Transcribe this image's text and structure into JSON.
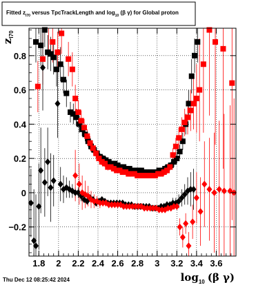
{
  "chart_data": {
    "type": "scatter",
    "title_parts": {
      "a": "Fitted  z",
      "a_sub": "I70",
      "b": "  versus TpcTrackLength and log",
      "b_sub": "10",
      "c": " (β  γ) for Global proton"
    },
    "xlabel": {
      "main": "log",
      "sub": "10",
      "tail": "(β γ)"
    },
    "ylabel": {
      "main": "z",
      "sub": "I70"
    },
    "xlim": [
      1.7,
      3.8
    ],
    "ylim": [
      -0.37,
      0.96
    ],
    "xticks": [
      1.8,
      2,
      2.2,
      2.4,
      2.6,
      2.8,
      3,
      3.2,
      3.4,
      3.6
    ],
    "xtick_labels": [
      "1.8",
      "2",
      "2.2",
      "2.4",
      "2.6",
      "2.8",
      "3",
      "3.2",
      "3.4",
      "3.6"
    ],
    "yticks": [
      -0.2,
      0,
      0.2,
      0.4,
      0.6,
      0.8
    ],
    "ytick_labels": [
      "−0.2",
      "0",
      "0.2",
      "0.4",
      "0.6",
      "0.8"
    ],
    "grid": true,
    "timestamp": "Thu Dec 12 08:25:42 2024",
    "series": [
      {
        "marker": "square",
        "color": "#000000",
        "points": [
          [
            1.77,
            0.88
          ],
          [
            1.82,
            0.86
          ],
          [
            1.86,
            0.95
          ],
          [
            1.89,
            0.82
          ],
          [
            1.92,
            0.81
          ],
          [
            1.95,
            0.79
          ],
          [
            1.98,
            0.72
          ],
          [
            2.02,
            0.75
          ],
          [
            2.05,
            0.66
          ],
          [
            2.08,
            0.58
          ],
          [
            2.12,
            0.47
          ],
          [
            2.15,
            0.46
          ],
          [
            2.18,
            0.44
          ],
          [
            2.21,
            0.4
          ],
          [
            2.24,
            0.37
          ],
          [
            2.27,
            0.34
          ],
          [
            2.3,
            0.3
          ],
          [
            2.33,
            0.27
          ],
          [
            2.36,
            0.25
          ],
          [
            2.39,
            0.23
          ],
          [
            2.42,
            0.21
          ],
          [
            2.45,
            0.2
          ],
          [
            2.48,
            0.19
          ],
          [
            2.51,
            0.18
          ],
          [
            2.54,
            0.17
          ],
          [
            2.57,
            0.17
          ],
          [
            2.6,
            0.16
          ],
          [
            2.63,
            0.15
          ],
          [
            2.66,
            0.15
          ],
          [
            2.69,
            0.14
          ],
          [
            2.72,
            0.14
          ],
          [
            2.75,
            0.13
          ],
          [
            2.78,
            0.13
          ],
          [
            2.81,
            0.13
          ],
          [
            2.84,
            0.13
          ],
          [
            2.87,
            0.12
          ],
          [
            2.9,
            0.12
          ],
          [
            2.93,
            0.12
          ],
          [
            2.96,
            0.12
          ],
          [
            2.99,
            0.12
          ],
          [
            3.02,
            0.13
          ],
          [
            3.05,
            0.13
          ],
          [
            3.08,
            0.14
          ],
          [
            3.11,
            0.15
          ],
          [
            3.14,
            0.16
          ],
          [
            3.17,
            0.18
          ],
          [
            3.2,
            0.2
          ],
          [
            3.23,
            0.24
          ],
          [
            3.26,
            0.3
          ],
          [
            3.29,
            0.4
          ],
          [
            3.32,
            0.52
          ],
          [
            3.35,
            0.68
          ],
          [
            3.38,
            0.8
          ],
          [
            3.41,
            0.88
          ]
        ],
        "errors": [
          0.12,
          0.12,
          0.1,
          0.1,
          0.1,
          0.1,
          0.1,
          0.1,
          0.08,
          0.08,
          0.06,
          0.06,
          0.05,
          0.05,
          0.04,
          0.04,
          0.03,
          0.03,
          0.02,
          0.02,
          0.02,
          0.02,
          0.02,
          0.015,
          0.015,
          0.015,
          0.015,
          0.015,
          0.015,
          0.015,
          0.015,
          0.015,
          0.015,
          0.015,
          0.015,
          0.015,
          0.015,
          0.015,
          0.015,
          0.015,
          0.015,
          0.015,
          0.02,
          0.02,
          0.02,
          0.03,
          0.03,
          0.04,
          0.05,
          0.06,
          0.08,
          0.1,
          0.1,
          0.12
        ]
      },
      {
        "marker": "square",
        "color": "#ff0000",
        "points": [
          [
            1.79,
            0.62
          ],
          [
            1.84,
            0.78
          ],
          [
            1.9,
            0.98
          ],
          [
            1.94,
            0.88
          ],
          [
            1.99,
            0.82
          ],
          [
            2.03,
            0.93
          ],
          [
            2.1,
            0.78
          ],
          [
            2.14,
            0.72
          ],
          [
            2.17,
            0.55
          ],
          [
            2.2,
            0.47
          ],
          [
            2.23,
            0.42
          ],
          [
            2.26,
            0.38
          ],
          [
            2.29,
            0.33
          ],
          [
            2.32,
            0.29
          ],
          [
            2.35,
            0.26
          ],
          [
            2.38,
            0.23
          ],
          [
            2.41,
            0.2
          ],
          [
            2.44,
            0.18
          ],
          [
            2.47,
            0.17
          ],
          [
            2.5,
            0.15
          ],
          [
            2.53,
            0.15
          ],
          [
            2.56,
            0.14
          ],
          [
            2.59,
            0.13
          ],
          [
            2.62,
            0.13
          ],
          [
            2.65,
            0.12
          ],
          [
            2.68,
            0.12
          ],
          [
            2.71,
            0.11
          ],
          [
            2.74,
            0.11
          ],
          [
            2.77,
            0.11
          ],
          [
            2.8,
            0.1
          ],
          [
            2.83,
            0.1
          ],
          [
            2.86,
            0.1
          ],
          [
            2.89,
            0.1
          ],
          [
            2.92,
            0.1
          ],
          [
            2.95,
            0.1
          ],
          [
            2.98,
            0.1
          ],
          [
            3.01,
            0.11
          ],
          [
            3.04,
            0.11
          ],
          [
            3.07,
            0.12
          ],
          [
            3.1,
            0.13
          ],
          [
            3.13,
            0.15
          ],
          [
            3.16,
            0.22
          ],
          [
            3.19,
            0.27
          ],
          [
            3.22,
            0.32
          ],
          [
            3.25,
            0.37
          ],
          [
            3.28,
            0.41
          ],
          [
            3.31,
            0.44
          ],
          [
            3.34,
            0.48
          ],
          [
            3.37,
            0.52
          ],
          [
            3.4,
            0.55
          ],
          [
            3.43,
            0.6
          ],
          [
            3.47,
            0.75
          ],
          [
            3.53,
            0.95
          ],
          [
            3.59,
            0.88
          ],
          [
            3.67,
            0.84
          ],
          [
            3.76,
            0.64
          ]
        ],
        "errors": [
          0.15,
          0.15,
          0.15,
          0.12,
          0.12,
          0.12,
          0.1,
          0.1,
          0.08,
          0.07,
          0.06,
          0.05,
          0.04,
          0.04,
          0.03,
          0.03,
          0.02,
          0.02,
          0.02,
          0.02,
          0.015,
          0.015,
          0.015,
          0.015,
          0.015,
          0.015,
          0.015,
          0.015,
          0.015,
          0.015,
          0.015,
          0.015,
          0.015,
          0.015,
          0.015,
          0.015,
          0.015,
          0.015,
          0.02,
          0.02,
          0.02,
          0.04,
          0.05,
          0.06,
          0.07,
          0.08,
          0.1,
          0.12,
          0.15,
          0.2,
          0.3,
          0.4,
          0.5,
          0.6,
          0.7,
          0.8
        ]
      },
      {
        "marker": "diamond",
        "color": "#000000",
        "points": [
          [
            1.72,
            -0.06
          ],
          [
            1.75,
            -0.28
          ],
          [
            1.77,
            -0.31
          ],
          [
            1.8,
            -0.08
          ],
          [
            1.82,
            0.13
          ],
          [
            1.84,
            0.73
          ],
          [
            1.86,
            0.06
          ],
          [
            1.89,
            0.18
          ],
          [
            1.92,
            0.03
          ],
          [
            1.95,
            0.07
          ],
          [
            1.99,
            0.52
          ],
          [
            2.02,
            0.05
          ],
          [
            2.05,
            0.02
          ],
          [
            2.08,
            0.03
          ],
          [
            2.11,
            0.02
          ],
          [
            2.14,
            0.01
          ],
          [
            2.17,
            0.0
          ],
          [
            2.2,
            0.0
          ],
          [
            2.23,
            -0.02
          ],
          [
            2.26,
            -0.04
          ],
          [
            2.29,
            -0.05
          ],
          [
            2.32,
            -0.03
          ],
          [
            2.35,
            -0.04
          ],
          [
            2.38,
            -0.06
          ],
          [
            2.41,
            -0.05
          ],
          [
            2.44,
            -0.04
          ],
          [
            2.47,
            -0.05
          ],
          [
            2.5,
            -0.06
          ],
          [
            2.53,
            -0.06
          ],
          [
            2.56,
            -0.06
          ],
          [
            2.59,
            -0.06
          ],
          [
            2.62,
            -0.06
          ],
          [
            2.65,
            -0.06
          ],
          [
            2.68,
            -0.07
          ],
          [
            2.71,
            -0.07
          ],
          [
            2.74,
            -0.07
          ],
          [
            2.77,
            -0.08
          ],
          [
            2.8,
            -0.08
          ],
          [
            2.83,
            -0.08
          ],
          [
            2.86,
            -0.08
          ],
          [
            2.89,
            -0.08
          ],
          [
            2.92,
            -0.08
          ],
          [
            2.95,
            -0.09
          ],
          [
            2.98,
            -0.09
          ],
          [
            3.01,
            -0.09
          ],
          [
            3.04,
            -0.08
          ],
          [
            3.07,
            -0.08
          ],
          [
            3.1,
            -0.07
          ],
          [
            3.13,
            -0.07
          ],
          [
            3.16,
            -0.06
          ],
          [
            3.19,
            -0.06
          ],
          [
            3.22,
            -0.05
          ],
          [
            3.25,
            -0.03
          ],
          [
            3.28,
            -0.01
          ],
          [
            3.31,
            0.01
          ],
          [
            3.34,
            0.02
          ],
          [
            3.37,
            0.02
          ]
        ],
        "errors": [
          0.2,
          0.3,
          0.3,
          0.25,
          0.25,
          0.25,
          0.2,
          0.2,
          0.2,
          0.15,
          0.2,
          0.1,
          0.08,
          0.06,
          0.05,
          0.04,
          0.03,
          0.03,
          0.03,
          0.02,
          0.02,
          0.02,
          0.02,
          0.02,
          0.015,
          0.015,
          0.015,
          0.015,
          0.015,
          0.015,
          0.015,
          0.015,
          0.015,
          0.015,
          0.015,
          0.015,
          0.015,
          0.015,
          0.015,
          0.015,
          0.015,
          0.015,
          0.015,
          0.015,
          0.015,
          0.015,
          0.02,
          0.02,
          0.02,
          0.03,
          0.03,
          0.04,
          0.05,
          0.06,
          0.08,
          0.1,
          0.12
        ]
      },
      {
        "marker": "diamond",
        "color": "#ff0000",
        "points": [
          [
            2.17,
            0.1
          ],
          [
            2.21,
            0.05
          ],
          [
            2.24,
            0.0
          ],
          [
            2.27,
            -0.01
          ],
          [
            2.3,
            -0.02
          ],
          [
            2.33,
            -0.04
          ],
          [
            2.36,
            -0.05
          ],
          [
            2.39,
            -0.05
          ],
          [
            2.42,
            -0.06
          ],
          [
            2.45,
            -0.06
          ],
          [
            2.48,
            -0.06
          ],
          [
            2.51,
            -0.07
          ],
          [
            2.54,
            -0.07
          ],
          [
            2.57,
            -0.07
          ],
          [
            2.6,
            -0.07
          ],
          [
            2.63,
            -0.07
          ],
          [
            2.66,
            -0.08
          ],
          [
            2.69,
            -0.08
          ],
          [
            2.72,
            -0.08
          ],
          [
            2.75,
            -0.08
          ],
          [
            2.78,
            -0.08
          ],
          [
            2.81,
            -0.08
          ],
          [
            2.84,
            -0.08
          ],
          [
            2.87,
            -0.09
          ],
          [
            2.9,
            -0.09
          ],
          [
            2.93,
            -0.09
          ],
          [
            2.96,
            -0.09
          ],
          [
            2.99,
            -0.09
          ],
          [
            3.02,
            -0.1
          ],
          [
            3.05,
            -0.1
          ],
          [
            3.08,
            -0.1
          ],
          [
            3.11,
            -0.09
          ],
          [
            3.14,
            -0.09
          ],
          [
            3.17,
            -0.08
          ],
          [
            3.2,
            -0.08
          ],
          [
            3.23,
            -0.2
          ],
          [
            3.26,
            -0.26
          ],
          [
            3.29,
            -0.18
          ],
          [
            3.32,
            -0.31
          ],
          [
            3.36,
            -0.17
          ],
          [
            3.4,
            -0.03
          ],
          [
            3.44,
            -0.11
          ],
          [
            3.48,
            0.05
          ],
          [
            3.53,
            0.02
          ],
          [
            3.58,
            0.0
          ],
          [
            3.63,
            0.02
          ],
          [
            3.68,
            0.01
          ],
          [
            3.74,
            0.01
          ],
          [
            3.78,
            0.0
          ]
        ],
        "errors": [
          0.15,
          0.12,
          0.1,
          0.08,
          0.06,
          0.05,
          0.04,
          0.03,
          0.03,
          0.02,
          0.02,
          0.02,
          0.02,
          0.015,
          0.015,
          0.015,
          0.015,
          0.015,
          0.015,
          0.015,
          0.015,
          0.015,
          0.015,
          0.015,
          0.015,
          0.015,
          0.015,
          0.015,
          0.015,
          0.015,
          0.015,
          0.015,
          0.015,
          0.02,
          0.02,
          0.05,
          0.06,
          0.06,
          0.08,
          0.1,
          0.15,
          0.2,
          0.25,
          0.3,
          0.35,
          0.4,
          0.45,
          0.5,
          0.55
        ]
      }
    ]
  }
}
